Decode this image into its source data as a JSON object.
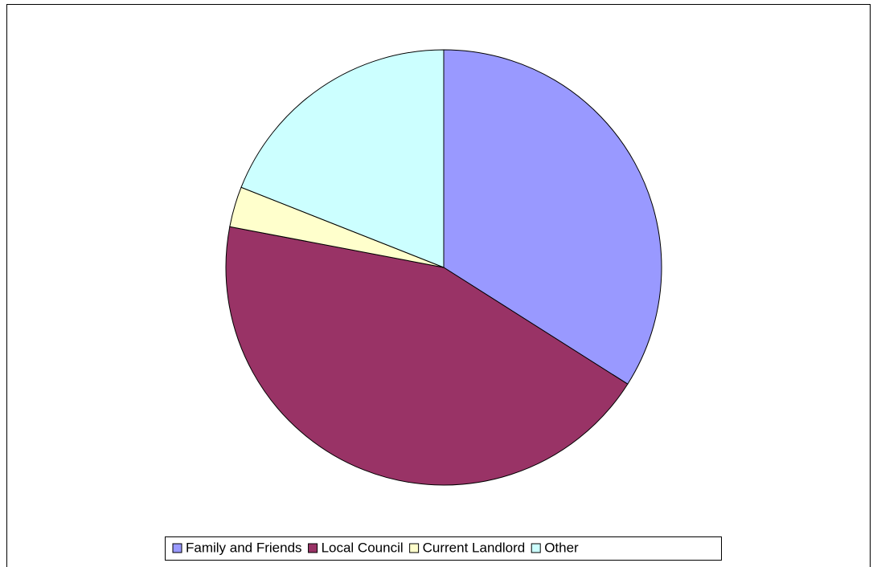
{
  "chart_data": {
    "type": "pie",
    "categories": [
      "Family and Friends",
      "Local Council",
      "Current Landlord",
      "Other"
    ],
    "values": [
      34,
      44,
      3,
      19
    ],
    "colors": [
      "#9999ff",
      "#993366",
      "#ffffcc",
      "#ccffff"
    ],
    "start_angle": 0,
    "direction": "clockwise",
    "legend": "bottom"
  }
}
